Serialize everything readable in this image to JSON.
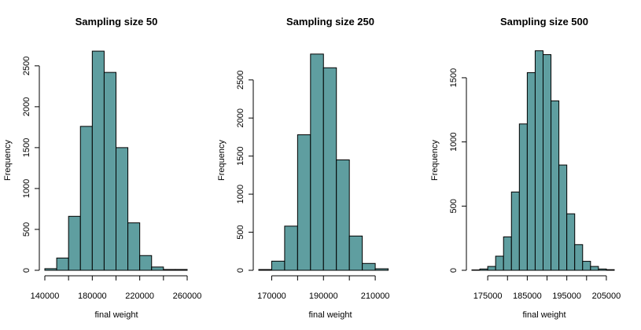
{
  "chart_data": [
    {
      "type": "bar",
      "title": "Sampling size 50",
      "xlabel": "final weight",
      "ylabel": "Frequency",
      "bar_color": "#5f9ea0",
      "bin_edges": [
        140000,
        150000,
        160000,
        170000,
        180000,
        190000,
        200000,
        210000,
        220000,
        230000,
        240000,
        250000,
        260000
      ],
      "values": [
        20,
        150,
        660,
        1760,
        2680,
        2420,
        1500,
        580,
        180,
        40,
        10,
        10
      ],
      "xlim": [
        140000,
        260000
      ],
      "ylim": [
        0,
        2700
      ],
      "xticks": [
        140000,
        180000,
        220000,
        260000
      ],
      "xtick_labels": [
        "140000",
        "180000",
        "220000",
        "260000"
      ],
      "yticks": [
        0,
        500,
        1000,
        1500,
        2000,
        2500
      ],
      "ytick_labels": [
        "0",
        "500",
        "1000",
        "1500",
        "2000",
        "2500"
      ]
    },
    {
      "type": "bar",
      "title": "Sampling size 250",
      "xlabel": "final weight",
      "ylabel": "Frequency",
      "bar_color": "#5f9ea0",
      "bin_edges": [
        165000,
        170000,
        175000,
        180000,
        185000,
        190000,
        195000,
        200000,
        205000,
        210000,
        215000
      ],
      "values": [
        10,
        120,
        580,
        1780,
        2840,
        2660,
        1450,
        450,
        90,
        20
      ],
      "xlim": [
        165000,
        220000
      ],
      "ylim": [
        0,
        2900
      ],
      "xticks": [
        170000,
        190000,
        210000
      ],
      "xtick_labels": [
        "170000",
        "190000",
        "210000"
      ],
      "yticks": [
        0,
        500,
        1000,
        1500,
        2000,
        2500
      ],
      "ytick_labels": [
        "0",
        "500",
        "1000",
        "1500",
        "2000",
        "2500"
      ]
    },
    {
      "type": "bar",
      "title": "Sampling size 500",
      "xlabel": "final weight",
      "ylabel": "Frequency",
      "bar_color": "#5f9ea0",
      "bin_edges": [
        171000,
        173000,
        175000,
        177000,
        179000,
        181000,
        183000,
        185000,
        187000,
        189000,
        191000,
        193000,
        195000,
        197000,
        199000,
        201000,
        203000,
        205000,
        207000
      ],
      "values": [
        3,
        10,
        30,
        110,
        260,
        610,
        1140,
        1540,
        1710,
        1680,
        1320,
        820,
        440,
        200,
        70,
        30,
        10,
        5
      ],
      "xlim": [
        171000,
        207000
      ],
      "ylim": [
        0,
        1720
      ],
      "xticks": [
        175000,
        185000,
        195000,
        205000
      ],
      "xtick_labels": [
        "175000",
        "185000",
        "195000",
        "205000"
      ],
      "yticks": [
        0,
        500,
        1000,
        1500
      ],
      "ytick_labels": [
        "0",
        "500",
        "1000",
        "1500"
      ]
    }
  ]
}
